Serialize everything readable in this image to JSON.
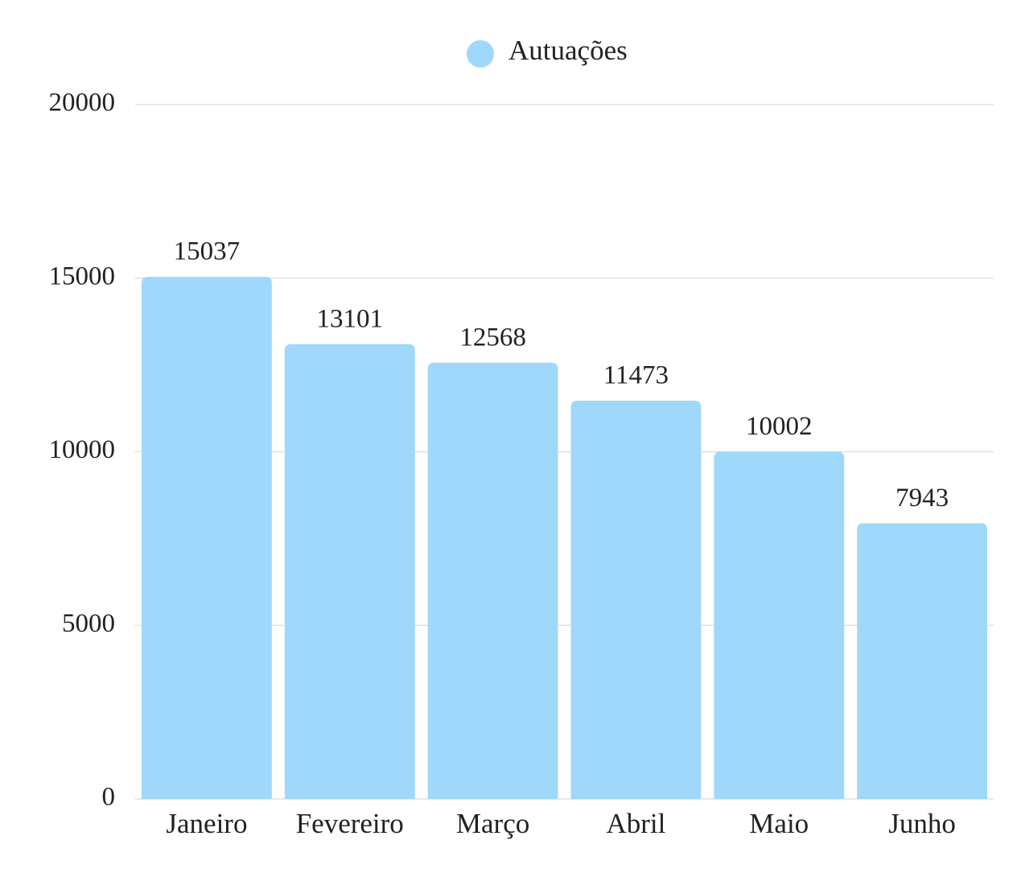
{
  "chart_data": {
    "type": "bar",
    "categories": [
      "Janeiro",
      "Fevereiro",
      "Março",
      "Abril",
      "Maio",
      "Junho"
    ],
    "series": [
      {
        "name": "Autuações",
        "color": "#9fd8fb",
        "values": [
          15037,
          13101,
          12568,
          11473,
          10002,
          7943
        ]
      }
    ],
    "ylim": [
      0,
      20000
    ],
    "yticks": [
      0,
      5000,
      10000,
      15000,
      20000
    ],
    "grid": true,
    "legend": "top"
  }
}
